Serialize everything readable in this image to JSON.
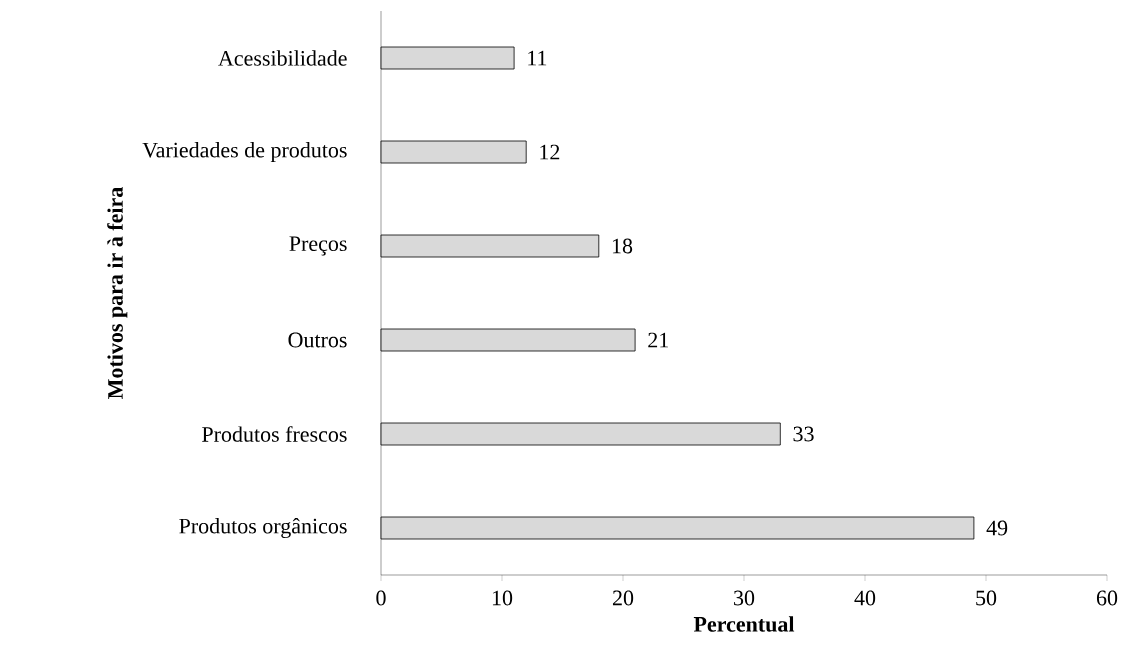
{
  "chart_data": {
    "type": "bar",
    "orientation": "horizontal",
    "xlabel": "Percentual",
    "ylabel": "Motivos para ir à feira",
    "categories": [
      "Acessibilidade",
      "Variedades de produtos",
      "Preços",
      "Outros",
      "Produtos frescos",
      "Produtos orgânicos"
    ],
    "values": [
      11,
      12,
      18,
      21,
      33,
      49
    ],
    "color": "#d9d9d9",
    "xlim": [
      0,
      60
    ],
    "xticks": [
      0,
      10,
      20,
      30,
      40,
      50,
      60
    ],
    "data_labels": true,
    "grid": false
  }
}
